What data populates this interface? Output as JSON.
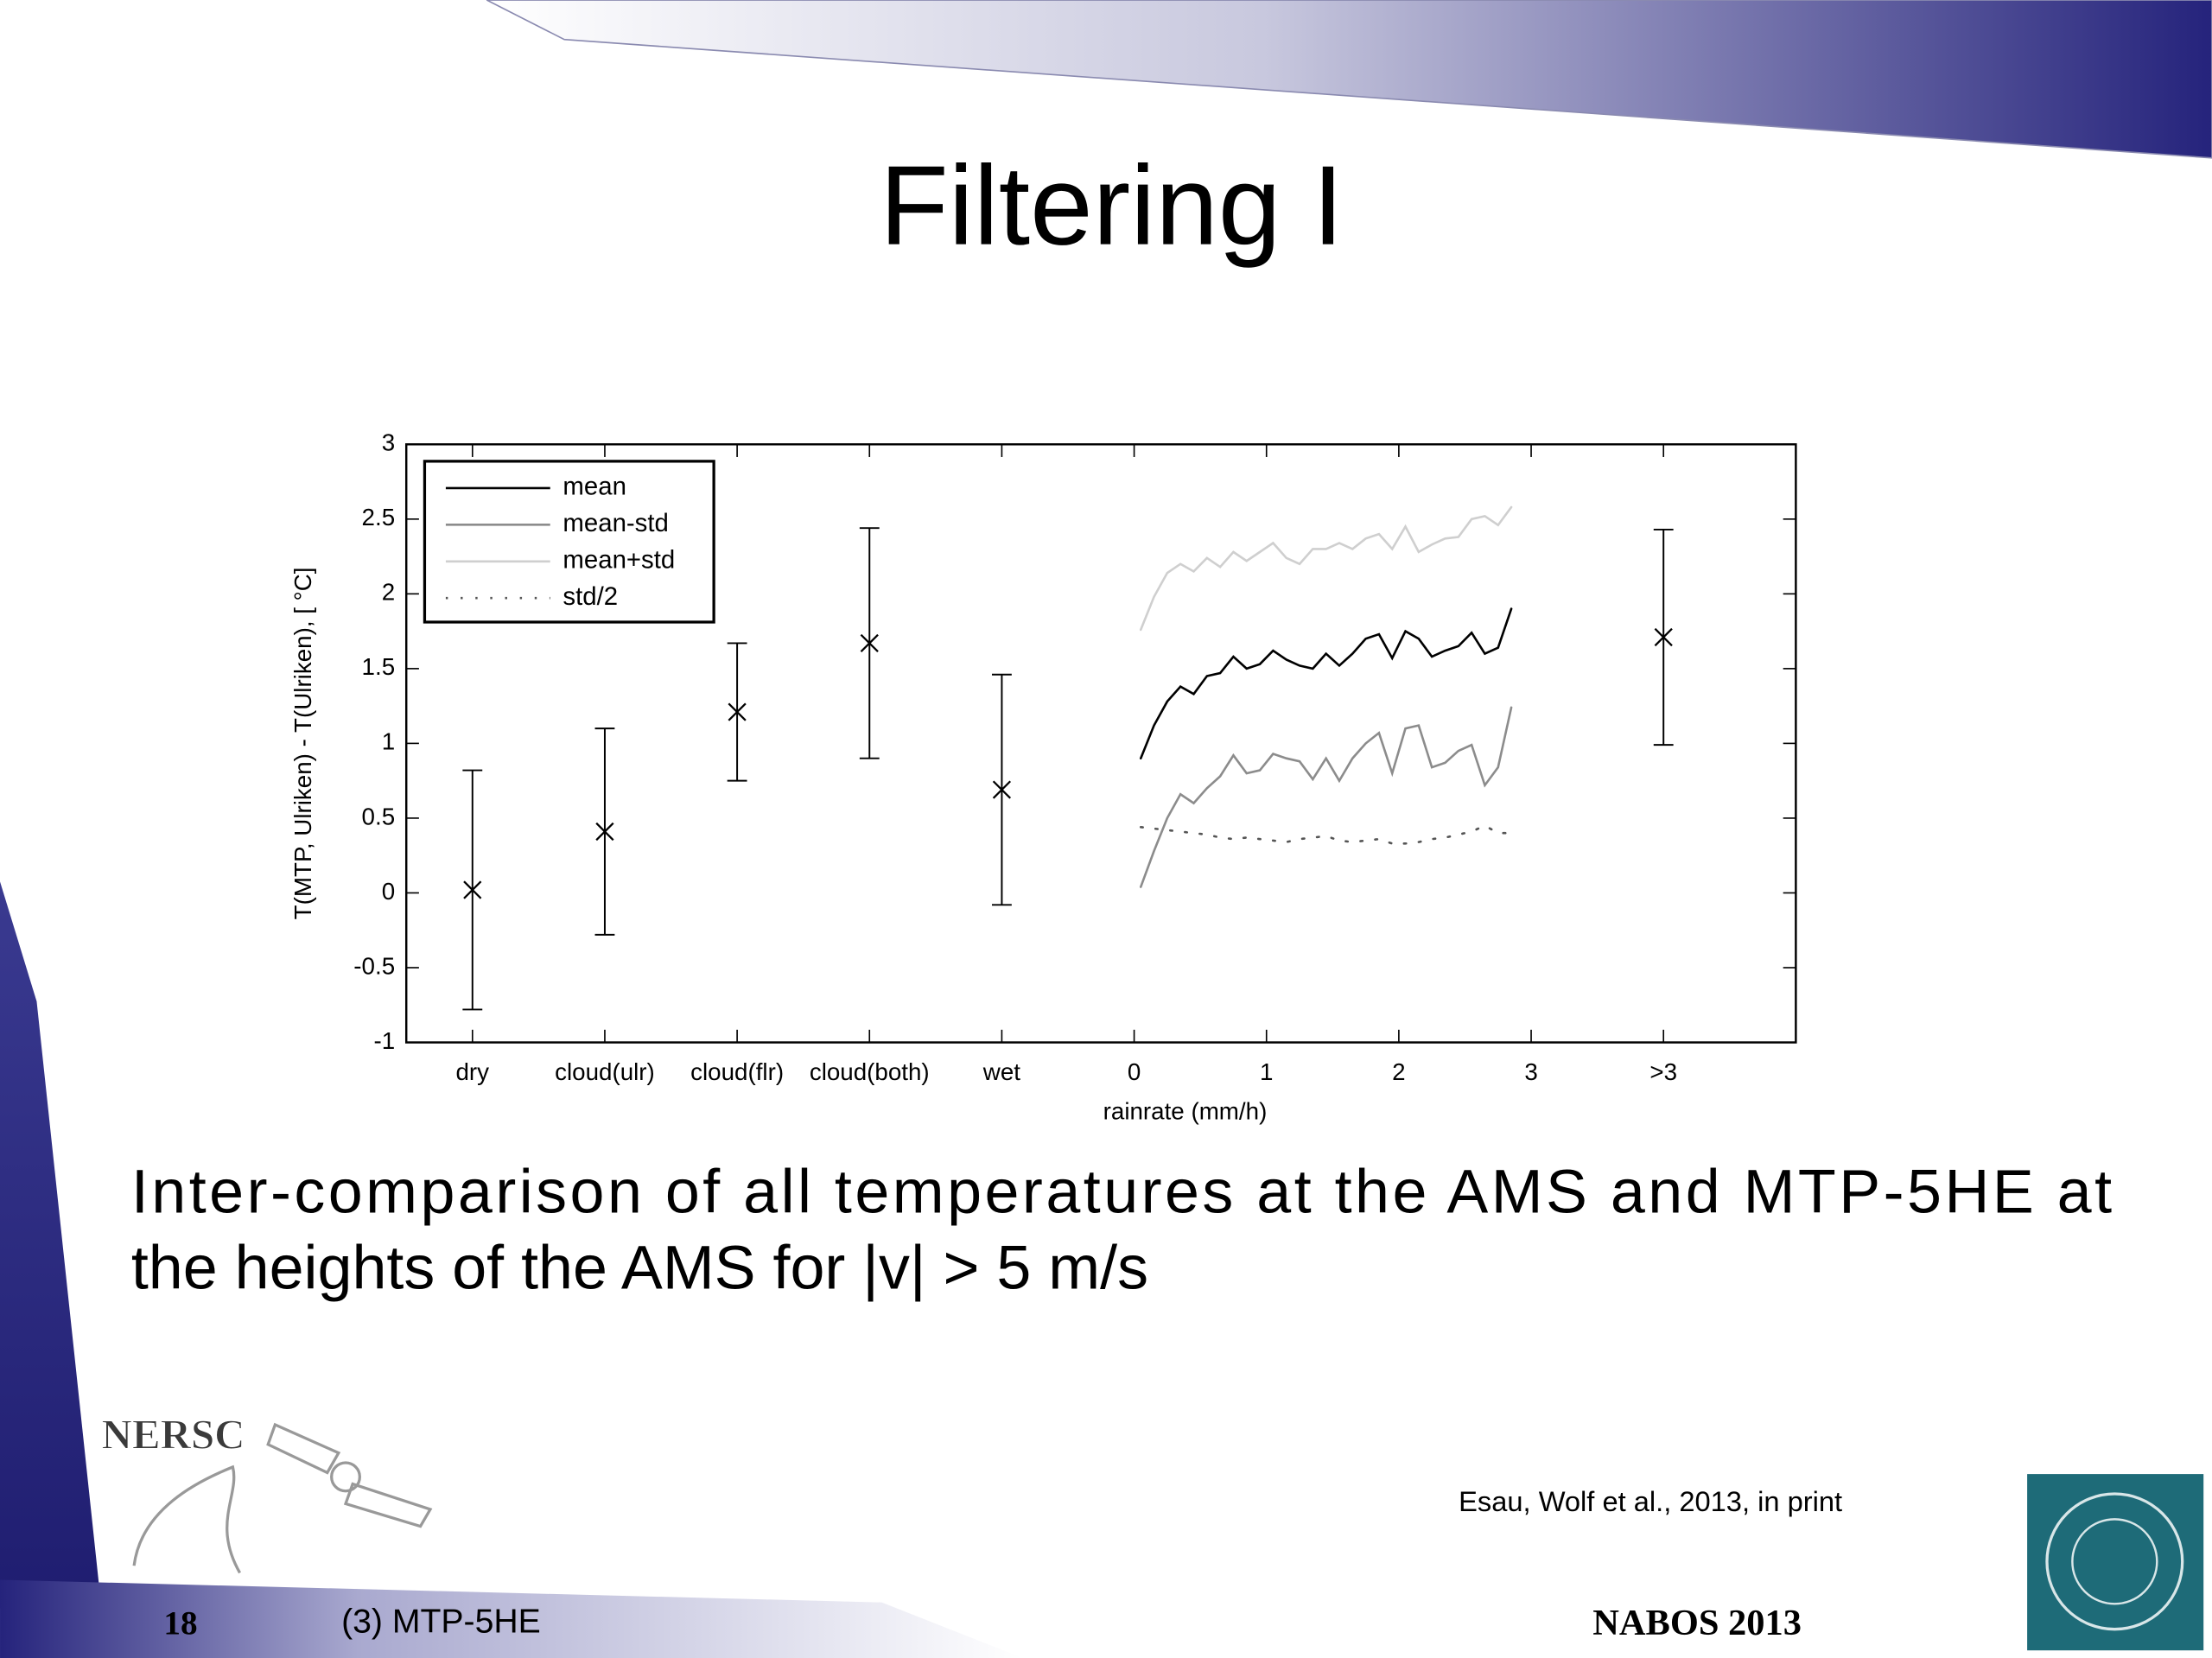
{
  "slide": {
    "title": "Filtering I",
    "caption": [
      "Inter-comparison of all temperatures at the AMS and MTP-5HE at",
      "the heights of the AMS for |v| > 5 m/s"
    ],
    "citation": "Esau, Wolf et al., 2013, in print",
    "logo": "NERSC",
    "page_number": "18",
    "section": "(3) MTP-5HE",
    "event": "NABOS 2013"
  },
  "chart_data": {
    "type": "line",
    "xlabel": "rainrate (mm/h)",
    "ylabel": "T(MTP, Ulriken) - T(Ulriken), [ °C]",
    "xlim": [
      -5.5,
      5
    ],
    "ylim": [
      -1,
      3
    ],
    "xticks": [
      {
        "value": -5,
        "label": "dry"
      },
      {
        "value": -4,
        "label": "cloud(ulr)"
      },
      {
        "value": -3,
        "label": "cloud(flr)"
      },
      {
        "value": -2,
        "label": "cloud(both)"
      },
      {
        "value": -1,
        "label": "wet"
      },
      0,
      1,
      2,
      3,
      {
        "value": 4,
        "label": ">3"
      }
    ],
    "yticks": [
      -1,
      -0.5,
      0,
      0.5,
      1,
      1.5,
      2,
      2.5,
      3
    ],
    "legend": "upper left",
    "x": [
      0.05,
      0.15,
      0.25,
      0.35,
      0.45,
      0.55,
      0.65,
      0.75,
      0.85,
      0.95,
      1.05,
      1.15,
      1.25,
      1.35,
      1.45,
      1.55,
      1.65,
      1.75,
      1.85,
      1.95,
      2.05,
      2.15,
      2.25,
      2.35,
      2.45,
      2.55,
      2.65,
      2.75,
      2.85
    ],
    "series": [
      {
        "name": "mean",
        "color": "#000000",
        "dash": "solid",
        "values": [
          0.9,
          1.12,
          1.28,
          1.38,
          1.33,
          1.45,
          1.47,
          1.58,
          1.5,
          1.53,
          1.62,
          1.56,
          1.52,
          1.5,
          1.6,
          1.52,
          1.6,
          1.7,
          1.73,
          1.57,
          1.75,
          1.7,
          1.58,
          1.62,
          1.65,
          1.74,
          1.6,
          1.64,
          1.9
        ]
      },
      {
        "name": "mean-std",
        "color": "#8c8c8c",
        "dash": "solid",
        "values": [
          0.04,
          0.28,
          0.5,
          0.66,
          0.6,
          0.7,
          0.78,
          0.92,
          0.8,
          0.82,
          0.93,
          0.9,
          0.88,
          0.76,
          0.9,
          0.75,
          0.9,
          1.0,
          1.07,
          0.8,
          1.1,
          1.12,
          0.84,
          0.87,
          0.95,
          0.99,
          0.72,
          0.84,
          1.24
        ]
      },
      {
        "name": "mean+std",
        "color": "#cfcfcf",
        "dash": "solid",
        "values": [
          1.76,
          1.98,
          2.14,
          2.2,
          2.15,
          2.24,
          2.18,
          2.28,
          2.22,
          2.28,
          2.34,
          2.24,
          2.2,
          2.3,
          2.3,
          2.34,
          2.3,
          2.37,
          2.4,
          2.3,
          2.45,
          2.28,
          2.33,
          2.37,
          2.38,
          2.5,
          2.52,
          2.46,
          2.58
        ]
      },
      {
        "name": "std/2",
        "color": "#555555",
        "dash": "dotted",
        "values": [
          0.44,
          0.43,
          0.42,
          0.41,
          0.4,
          0.39,
          0.37,
          0.36,
          0.37,
          0.36,
          0.35,
          0.34,
          0.36,
          0.37,
          0.38,
          0.35,
          0.34,
          0.35,
          0.36,
          0.33,
          0.33,
          0.34,
          0.36,
          0.37,
          0.39,
          0.41,
          0.45,
          0.4,
          0.4
        ]
      }
    ],
    "points": {
      "color": "#000000",
      "x": [
        -5,
        -4,
        -3,
        -2,
        -1,
        4
      ],
      "values": [
        0.02,
        0.41,
        1.21,
        1.67,
        0.69,
        1.71
      ],
      "errors": [
        0.8,
        0.69,
        0.46,
        0.77,
        0.77,
        0.72
      ]
    }
  }
}
